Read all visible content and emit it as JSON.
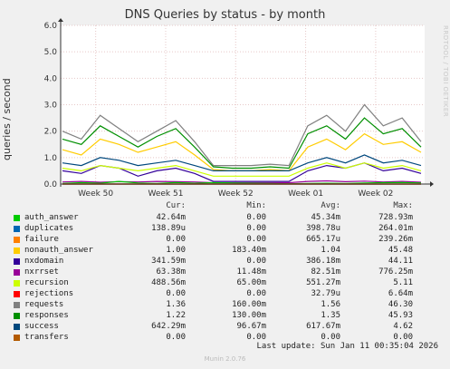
{
  "chart_data": {
    "type": "line",
    "title": "DNS Queries by status - by month",
    "ylabel": "queries / second",
    "xlabel": "",
    "ylim": [
      0,
      6.0
    ],
    "yticks": [
      "0.0",
      "1.0",
      "2.0",
      "3.0",
      "4.0",
      "5.0",
      "6.0"
    ],
    "xticks": [
      "Week 50",
      "Week 51",
      "Week 52",
      "Week 01",
      "Week 02"
    ],
    "grid": true,
    "legend_placement": "below",
    "stats_headers": [
      "Cur:",
      "Min:",
      "Avg:",
      "Max:"
    ],
    "series": [
      {
        "name": "auth_answer",
        "color": "#00cc00",
        "cur": "42.64m",
        "min": "0.00",
        "avg": "45.34m",
        "max": "728.93m",
        "values": [
          0.02,
          0.05,
          0.03,
          0.1,
          0.04,
          0.02,
          0.06,
          0.03,
          0.05,
          0.04,
          0.03,
          0.02,
          0.01,
          0.02,
          0.03,
          0.02,
          0.04,
          0.05,
          0.06,
          0.04
        ]
      },
      {
        "name": "duplicates",
        "color": "#0066b3",
        "cur": "138.89u",
        "min": "0.00",
        "avg": "398.78u",
        "max": "264.01m",
        "values": [
          0,
          0,
          0,
          0,
          0,
          0,
          0,
          0,
          0,
          0,
          0,
          0,
          0,
          0,
          0,
          0,
          0,
          0,
          0,
          0
        ]
      },
      {
        "name": "failure",
        "color": "#ff8000",
        "cur": "0.00",
        "min": "0.00",
        "avg": "665.17u",
        "max": "239.26m",
        "values": [
          0,
          0,
          0,
          0,
          0,
          0,
          0,
          0,
          0,
          0,
          0,
          0,
          0,
          0,
          0,
          0,
          0,
          0,
          0,
          0
        ]
      },
      {
        "name": "nonauth_answer",
        "color": "#ffcc00",
        "cur": "1.00",
        "min": "183.40m",
        "avg": "1.04",
        "max": "45.48",
        "values": [
          1.3,
          1.1,
          1.7,
          1.5,
          1.2,
          1.4,
          1.6,
          1.1,
          0.55,
          0.5,
          0.5,
          0.55,
          0.5,
          1.4,
          1.7,
          1.3,
          1.9,
          1.5,
          1.6,
          1.2
        ]
      },
      {
        "name": "nxdomain",
        "color": "#330099",
        "cur": "341.59m",
        "min": "0.00",
        "avg": "386.18m",
        "max": "44.11",
        "values": [
          0.5,
          0.4,
          0.7,
          0.6,
          0.3,
          0.5,
          0.6,
          0.4,
          0.1,
          0.1,
          0.1,
          0.1,
          0.1,
          0.5,
          0.7,
          0.6,
          0.8,
          0.5,
          0.6,
          0.4
        ]
      },
      {
        "name": "nxrrset",
        "color": "#990099",
        "cur": "63.38m",
        "min": "11.48m",
        "avg": "82.51m",
        "max": "776.25m",
        "values": [
          0.08,
          0.1,
          0.07,
          0.09,
          0.08,
          0.1,
          0.09,
          0.08,
          0.05,
          0.05,
          0.05,
          0.05,
          0.05,
          0.1,
          0.12,
          0.09,
          0.11,
          0.08,
          0.1,
          0.07
        ]
      },
      {
        "name": "recursion",
        "color": "#ccff00",
        "cur": "488.56m",
        "min": "65.00m",
        "avg": "551.27m",
        "max": "5.11",
        "values": [
          0.6,
          0.5,
          0.7,
          0.6,
          0.5,
          0.6,
          0.7,
          0.5,
          0.3,
          0.3,
          0.3,
          0.3,
          0.3,
          0.6,
          0.8,
          0.6,
          0.8,
          0.6,
          0.7,
          0.5
        ]
      },
      {
        "name": "rejections",
        "color": "#ff0000",
        "cur": "0.00",
        "min": "0.00",
        "avg": "32.79u",
        "max": "6.64m",
        "values": [
          0,
          0,
          0,
          0,
          0,
          0,
          0,
          0,
          0,
          0,
          0,
          0,
          0,
          0,
          0,
          0,
          0,
          0,
          0,
          0
        ]
      },
      {
        "name": "requests",
        "color": "#808080",
        "cur": "1.36",
        "min": "160.00m",
        "avg": "1.56",
        "max": "46.30",
        "values": [
          2.0,
          1.7,
          2.6,
          2.1,
          1.6,
          2.0,
          2.4,
          1.6,
          0.7,
          0.7,
          0.7,
          0.75,
          0.7,
          2.2,
          2.6,
          2.0,
          3.0,
          2.2,
          2.5,
          1.6
        ]
      },
      {
        "name": "responses",
        "color": "#008f00",
        "cur": "1.22",
        "min": "130.00m",
        "avg": "1.35",
        "max": "45.93",
        "values": [
          1.7,
          1.5,
          2.2,
          1.8,
          1.4,
          1.8,
          2.1,
          1.4,
          0.65,
          0.6,
          0.6,
          0.65,
          0.6,
          1.9,
          2.2,
          1.7,
          2.5,
          1.9,
          2.1,
          1.4
        ]
      },
      {
        "name": "success",
        "color": "#00487d",
        "cur": "642.29m",
        "min": "96.67m",
        "avg": "617.67m",
        "max": "4.62",
        "values": [
          0.8,
          0.7,
          1.0,
          0.9,
          0.7,
          0.8,
          0.9,
          0.7,
          0.5,
          0.5,
          0.5,
          0.5,
          0.5,
          0.8,
          1.0,
          0.8,
          1.1,
          0.8,
          0.9,
          0.7
        ]
      },
      {
        "name": "transfers",
        "color": "#b35a00",
        "cur": "0.00",
        "min": "0.00",
        "avg": "0.00",
        "max": "0.00",
        "values": [
          0,
          0,
          0,
          0,
          0,
          0,
          0,
          0,
          0,
          0,
          0,
          0,
          0,
          0,
          0,
          0,
          0,
          0,
          0,
          0
        ]
      }
    ]
  },
  "last_update": "Last update: Sun Jan 11 00:35:04 2026",
  "version": "Munin 2.0.76",
  "watermark": "RRDTOOL / TOBI OETIKER"
}
